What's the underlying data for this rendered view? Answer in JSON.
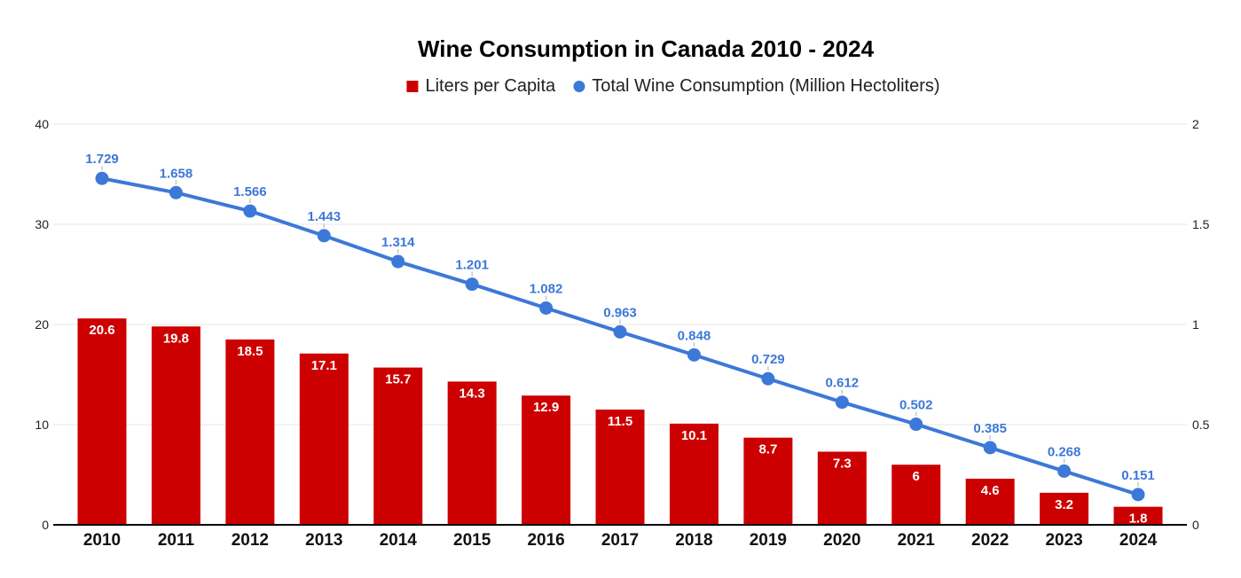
{
  "header": {
    "title": "Wine Consumption in Canada 2010 - 2024"
  },
  "legend": {
    "items": [
      {
        "label": "Liters per Capita",
        "marker": "square",
        "color": "#cc0000"
      },
      {
        "label": "Total Wine Consumption (Million Hectoliters)",
        "marker": "circle",
        "color": "#3c78d8"
      }
    ]
  },
  "colors": {
    "background": "#ffffff",
    "bar": "#cc0000",
    "line": "#3c78d8",
    "bar_label_text": "#ffffff",
    "point_label_text": "#3c78d8",
    "gridline": "#e6e6e6",
    "baseline": "#000000",
    "annotation_stem": "#c7c7c7",
    "axis_text": "#222222"
  },
  "chart_data": {
    "type": "combo-bar-line",
    "title": "Wine Consumption in Canada 2010 - 2024",
    "legend_position": "top",
    "grid": true,
    "categories": [
      "2010",
      "2011",
      "2012",
      "2013",
      "2014",
      "2015",
      "2016",
      "2017",
      "2018",
      "2019",
      "2020",
      "2021",
      "2022",
      "2023",
      "2024"
    ],
    "series": [
      {
        "name": "Liters per Capita",
        "type": "bar",
        "axis": "left",
        "color": "#cc0000",
        "values": [
          20.6,
          19.8,
          18.5,
          17.1,
          15.7,
          14.3,
          12.9,
          11.5,
          10.1,
          8.7,
          7.3,
          6,
          4.6,
          3.2,
          1.8
        ],
        "labels": [
          "20.6",
          "19.8",
          "18.5",
          "17.1",
          "15.7",
          "14.3",
          "12.9",
          "11.5",
          "10.1",
          "8.7",
          "7.3",
          "6",
          "4.6",
          "3.2",
          "1.8"
        ]
      },
      {
        "name": "Total Wine Consumption (Million Hectoliters)",
        "type": "line",
        "axis": "right",
        "color": "#3c78d8",
        "values": [
          1.729,
          1.658,
          1.566,
          1.443,
          1.314,
          1.201,
          1.082,
          0.963,
          0.848,
          0.729,
          0.612,
          0.502,
          0.385,
          0.268,
          0.151
        ],
        "labels": [
          "1.729",
          "1.658",
          "1.566",
          "1.443",
          "1.314",
          "1.201",
          "1.082",
          "0.963",
          "0.848",
          "0.729",
          "0.612",
          "0.502",
          "0.385",
          "0.268",
          "0.151"
        ]
      }
    ],
    "left_axis": {
      "range": [
        0,
        40
      ],
      "tick_values": [
        0,
        10,
        20,
        30,
        40
      ],
      "ticks": [
        "0",
        "10",
        "20",
        "30",
        "40"
      ]
    },
    "right_axis": {
      "range": [
        0,
        2
      ],
      "tick_values": [
        0,
        0.5,
        1,
        1.5,
        2
      ],
      "ticks": [
        "0",
        "0.5",
        "1",
        "1.5",
        "2"
      ]
    }
  }
}
